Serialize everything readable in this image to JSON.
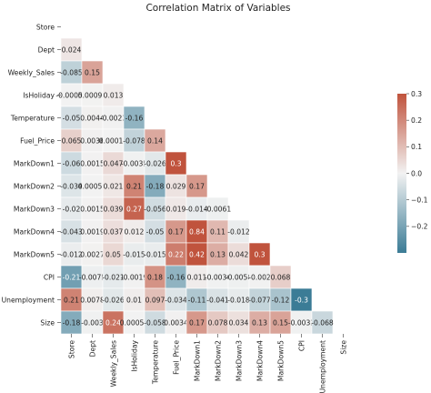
{
  "chart_data": {
    "type": "heatmap",
    "title": "Correlation Matrix of Variables",
    "variables": [
      "Store",
      "Dept",
      "Weekly_Sales",
      "IsHoliday",
      "Temperature",
      "Fuel_Price",
      "MarkDown1",
      "MarkDown2",
      "MarkDown3",
      "MarkDown4",
      "MarkDown5",
      "CPI",
      "Unemployment",
      "Size"
    ],
    "mask": "upper-triangle-incl-diagonal",
    "matrix_lower": [
      [],
      [
        0.024
      ],
      [
        -0.085,
        0.15
      ],
      [
        -0.00058,
        0.00092,
        0.013
      ],
      [
        -0.05,
        0.0044,
        -0.0023,
        -0.16
      ],
      [
        0.065,
        0.0036,
        0.00012,
        -0.078,
        0.14
      ],
      [
        -0.06,
        0.0015,
        0.047,
        -0.0035,
        -0.026,
        0.3
      ],
      [
        -0.034,
        0.00059,
        0.021,
        0.21,
        -0.18,
        0.029,
        0.17
      ],
      [
        -0.02,
        0.0015,
        0.039,
        0.27,
        -0.056,
        0.019,
        -0.014,
        -0.0061
      ],
      [
        -0.043,
        0.0019,
        0.037,
        0.012,
        -0.05,
        0.17,
        0.84,
        0.11,
        -0.012
      ],
      [
        -0.012,
        0.0027,
        0.05,
        -0.015,
        -0.015,
        0.22,
        0.42,
        0.13,
        0.042,
        0.3
      ],
      [
        -0.21,
        -0.0075,
        -0.021,
        -0.0019,
        0.18,
        -0.16,
        0.011,
        -0.0036,
        -0.0058,
        -0.002,
        0.068
      ],
      [
        0.21,
        0.0078,
        -0.026,
        0.01,
        0.097,
        -0.034,
        -0.11,
        -0.041,
        -0.018,
        -0.077,
        -0.12,
        -0.3
      ],
      [
        -0.18,
        -0.003,
        0.24,
        0.00059,
        -0.058,
        0.0034,
        0.17,
        0.078,
        0.034,
        0.13,
        0.15,
        -0.0033,
        -0.068
      ]
    ],
    "cell_labels": [
      [],
      [
        "0.024"
      ],
      [
        "-0.085",
        "0.15"
      ],
      [
        "-0.00058",
        "0.00092",
        "0.013"
      ],
      [
        "-0.05",
        "0.0044",
        "-0.0023",
        "-0.16"
      ],
      [
        "0.065",
        "0.0036",
        "0.00012",
        "-0.078",
        "0.14"
      ],
      [
        "-0.06",
        "0.0015",
        "0.047",
        "-0.0035",
        "-0.026",
        "0.3"
      ],
      [
        "-0.034",
        "0.00059",
        "0.021",
        "0.21",
        "-0.18",
        "0.029",
        "0.17"
      ],
      [
        "-0.02",
        "0.0015",
        "0.039",
        "0.27",
        "-0.056",
        "0.019",
        "-0.014",
        "-0.0061"
      ],
      [
        "-0.043",
        "0.0019",
        "0.037",
        "0.012",
        "-0.05",
        "0.17",
        "0.84",
        "0.11",
        "-0.012"
      ],
      [
        "-0.012",
        "0.0027",
        "0.05",
        "-0.015",
        "-0.015",
        "0.22",
        "0.42",
        "0.13",
        "0.042",
        "0.3"
      ],
      [
        "-0.21",
        "-0.0075",
        "-0.021",
        "-0.0019",
        "0.18",
        "-0.16",
        "0.011",
        "-0.0036",
        "-0.0058",
        "-0.002",
        "0.068"
      ],
      [
        "0.21",
        "0.0078",
        "-0.026",
        "0.01",
        "0.097",
        "-0.034",
        "-0.11",
        "-0.041",
        "-0.018",
        "-0.077",
        "-0.12",
        "-0.3"
      ],
      [
        "-0.18",
        "-0.003",
        "0.24",
        "0.00059",
        "-0.058",
        "0.0034",
        "0.17",
        "0.078",
        "0.034",
        "0.13",
        "0.15",
        "-0.0033",
        "-0.068"
      ]
    ],
    "color_range": [
      -0.3,
      0.3
    ],
    "colormap": {
      "negative": "#3b7c96",
      "zero": "#f2f2f2",
      "positive": "#c0533d"
    },
    "colorbar": {
      "ticks": [
        0.3,
        0.2,
        0.1,
        0.0,
        -0.1,
        -0.2
      ],
      "tick_labels": [
        "0.3",
        "0.2",
        "0.1",
        "0.0",
        "−0.1",
        "−0.2"
      ]
    }
  }
}
